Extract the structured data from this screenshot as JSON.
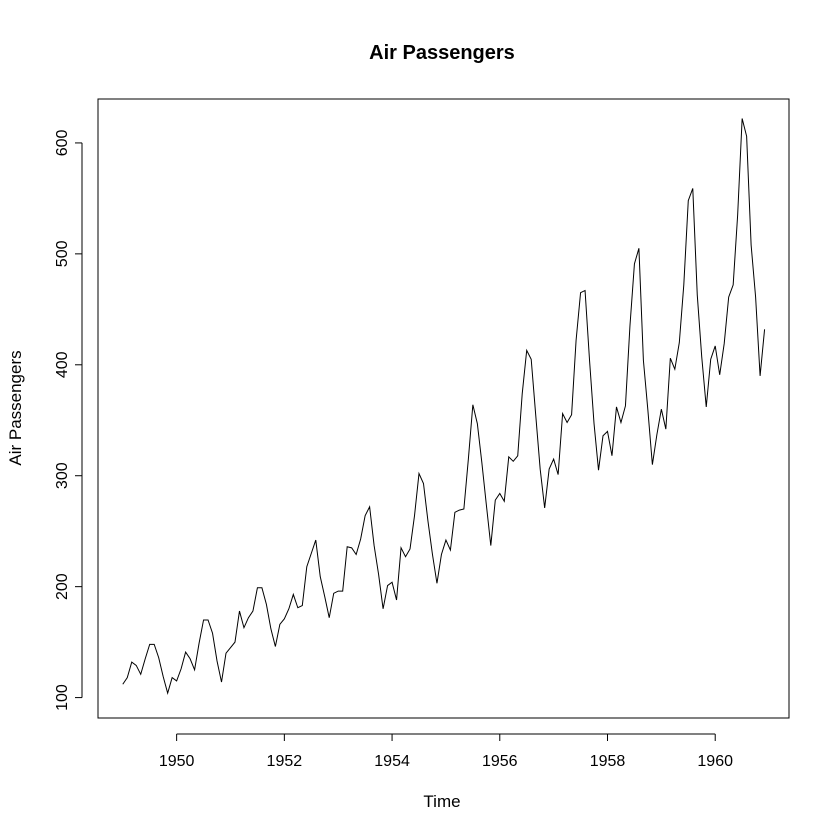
{
  "chart_data": {
    "type": "line",
    "title": "Air Passengers",
    "xlabel": "Time",
    "ylabel": "Air Passengers",
    "xlim": [
      1948.54,
      1961.37
    ],
    "ylim": [
      81.6,
      639.6
    ],
    "x_ticks": [
      1950,
      1952,
      1954,
      1956,
      1958,
      1960
    ],
    "x_tick_labels": [
      "1950",
      "1952",
      "1954",
      "1956",
      "1958",
      "1960"
    ],
    "y_ticks": [
      100,
      200,
      300,
      400,
      500,
      600
    ],
    "y_tick_labels": [
      "100",
      "200",
      "300",
      "400",
      "500",
      "600"
    ],
    "grid": false,
    "series": [
      {
        "x_start": 1949.0,
        "x_step": 0.083333,
        "values": [
          112,
          118,
          132,
          129,
          121,
          135,
          148,
          148,
          136,
          119,
          104,
          118,
          115,
          126,
          141,
          135,
          125,
          149,
          170,
          170,
          158,
          133,
          114,
          140,
          145,
          150,
          178,
          163,
          172,
          178,
          199,
          199,
          184,
          162,
          146,
          166,
          171,
          180,
          193,
          181,
          183,
          218,
          230,
          242,
          209,
          191,
          172,
          194,
          196,
          196,
          236,
          235,
          229,
          243,
          264,
          272,
          237,
          211,
          180,
          201,
          204,
          188,
          235,
          227,
          234,
          264,
          302,
          293,
          259,
          229,
          203,
          229,
          242,
          233,
          267,
          269,
          270,
          315,
          364,
          347,
          312,
          274,
          237,
          278,
          284,
          277,
          317,
          313,
          318,
          374,
          413,
          405,
          355,
          306,
          271,
          306,
          315,
          301,
          356,
          348,
          355,
          422,
          465,
          467,
          404,
          347,
          305,
          336,
          340,
          318,
          362,
          348,
          363,
          435,
          491,
          505,
          404,
          359,
          310,
          337,
          360,
          342,
          406,
          396,
          420,
          472,
          548,
          559,
          463,
          407,
          362,
          405,
          417,
          391,
          419,
          461,
          472,
          535,
          622,
          606,
          508,
          461,
          390,
          432
        ]
      }
    ]
  }
}
